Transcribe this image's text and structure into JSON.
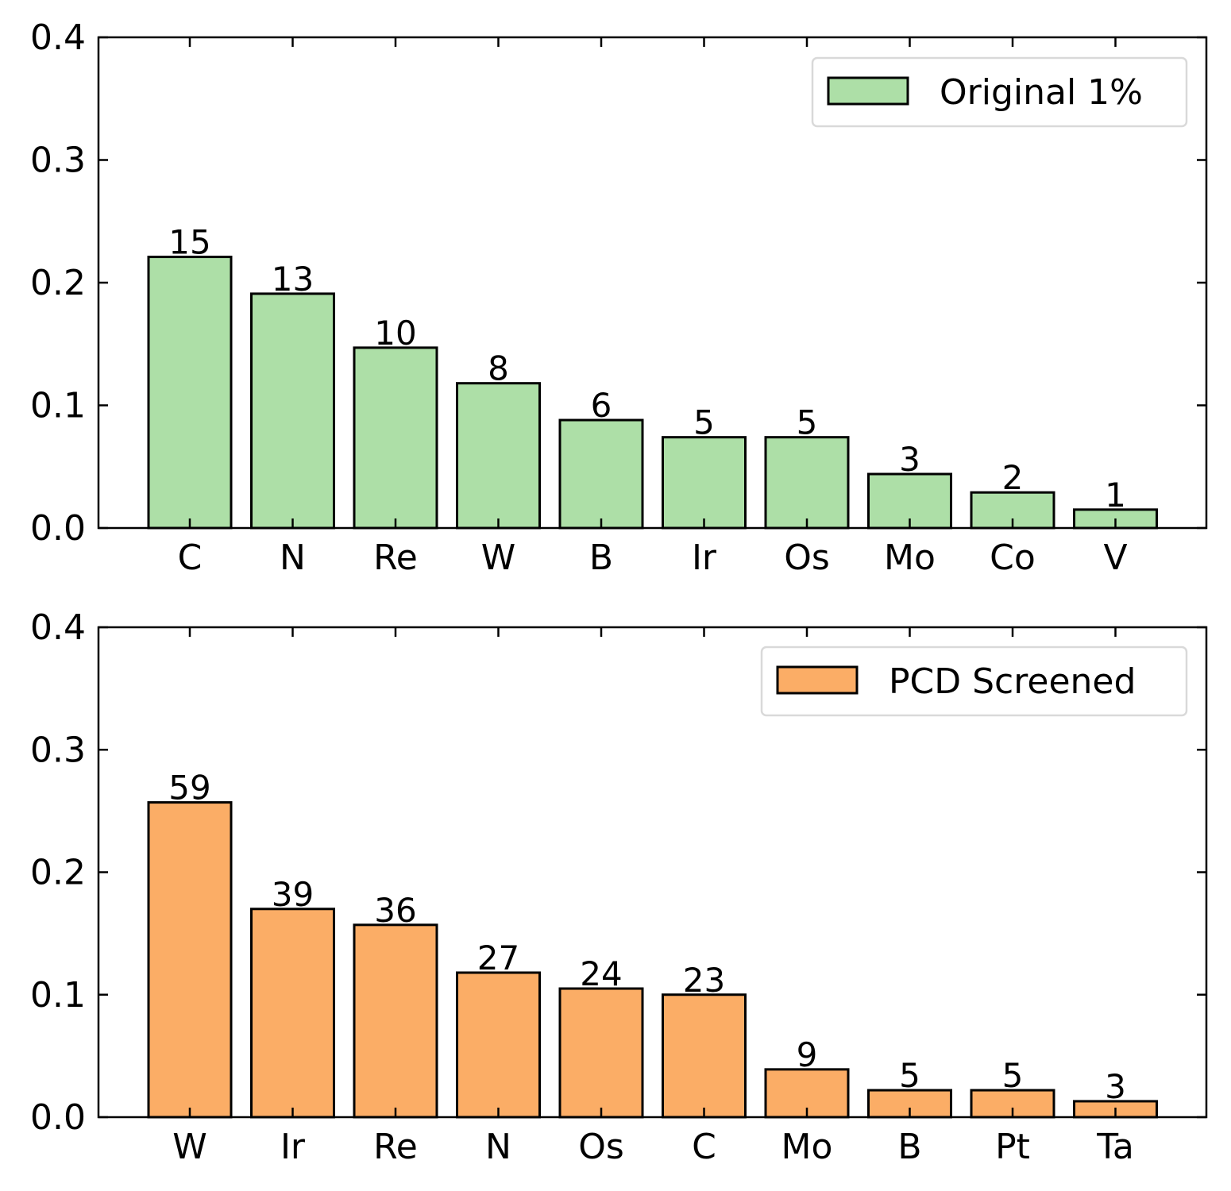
{
  "chart_data": [
    {
      "type": "bar",
      "categories": [
        "C",
        "N",
        "Re",
        "W",
        "B",
        "Ir",
        "Os",
        "Mo",
        "Co",
        "V"
      ],
      "series": [
        {
          "name": "Original 1%",
          "values": [
            0.221,
            0.191,
            0.147,
            0.118,
            0.088,
            0.074,
            0.074,
            0.044,
            0.029,
            0.015
          ],
          "counts": [
            "15",
            "13",
            "10",
            "8",
            "6",
            "5",
            "5",
            "3",
            "2",
            "1"
          ],
          "color": "#addfa7"
        }
      ],
      "ylim": [
        0,
        0.4
      ],
      "yticks": [
        "0.0",
        "0.1",
        "0.2",
        "0.3",
        "0.4"
      ],
      "ytick_values": [
        0,
        0.1,
        0.2,
        0.3,
        0.4
      ],
      "legend_position": "top-right",
      "grid": false
    },
    {
      "type": "bar",
      "categories": [
        "W",
        "Ir",
        "Re",
        "N",
        "Os",
        "C",
        "Mo",
        "B",
        "Pt",
        "Ta"
      ],
      "series": [
        {
          "name": "PCD Screened",
          "values": [
            0.257,
            0.17,
            0.157,
            0.118,
            0.105,
            0.1,
            0.039,
            0.022,
            0.022,
            0.013
          ],
          "counts": [
            "59",
            "39",
            "36",
            "27",
            "24",
            "23",
            "9",
            "5",
            "5",
            "3"
          ],
          "color": "#fbad66"
        }
      ],
      "ylim": [
        0,
        0.4
      ],
      "yticks": [
        "0.0",
        "0.1",
        "0.2",
        "0.3",
        "0.4"
      ],
      "ytick_values": [
        0,
        0.1,
        0.2,
        0.3,
        0.4
      ],
      "legend_position": "top-right",
      "grid": false
    }
  ]
}
